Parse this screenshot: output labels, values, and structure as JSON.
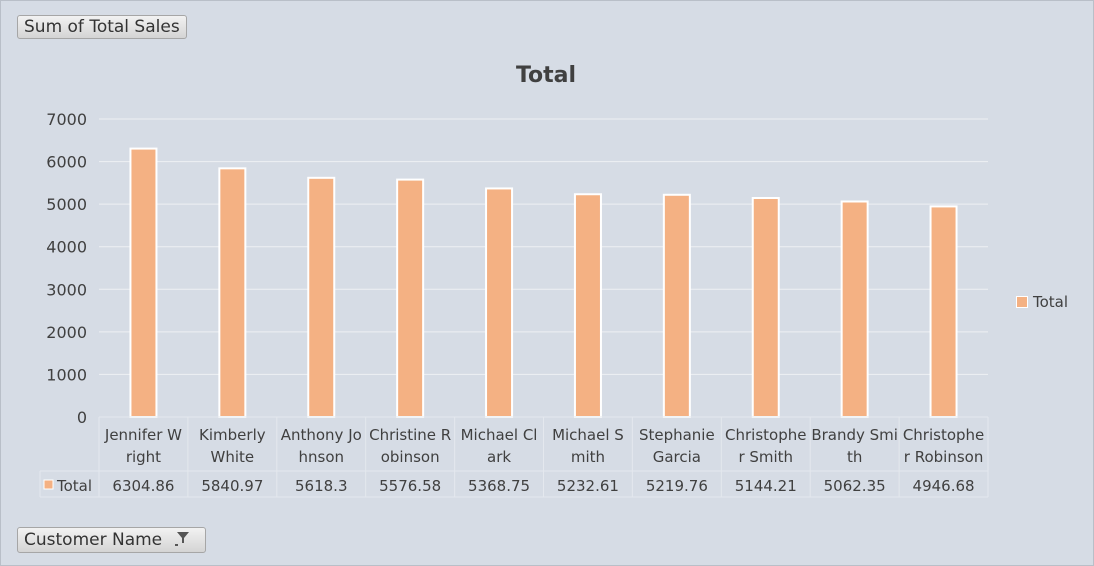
{
  "pivot": {
    "value_field_label": "Sum of Total Sales",
    "row_field_label": "Customer Name"
  },
  "legend": {
    "label": "Total",
    "color": "#f4b183"
  },
  "table": {
    "row_label": "Total"
  },
  "chart_data": {
    "type": "bar",
    "title": "Total",
    "xlabel": "",
    "ylabel": "",
    "ylim": [
      0,
      7000
    ],
    "yticks": [
      0,
      1000,
      2000,
      3000,
      4000,
      5000,
      6000,
      7000
    ],
    "grid": true,
    "legend_position": "right",
    "bar_color": "#f4b183",
    "categories": [
      "Jennifer Wright",
      "Kimberly White",
      "Anthony Johnson",
      "Christine Robinson",
      "Michael Clark",
      "Michael Smith",
      "Stephanie Garcia",
      "Christopher Smith",
      "Brandy Smith",
      "Christopher Robinson"
    ],
    "category_label_lines": [
      [
        "Jennifer W",
        "right"
      ],
      [
        "Kimberly",
        "White"
      ],
      [
        "Anthony Jo",
        "hnson"
      ],
      [
        "Christine R",
        "obinson"
      ],
      [
        "Michael Cl",
        "ark"
      ],
      [
        "Michael S",
        "mith"
      ],
      [
        "Stephanie",
        "Garcia"
      ],
      [
        "Christophe",
        "r Smith"
      ],
      [
        "Brandy Smi",
        "th"
      ],
      [
        "Christophe",
        "r Robinson"
      ]
    ],
    "series": [
      {
        "name": "Total",
        "values": [
          6304.86,
          5840.97,
          5618.3,
          5576.58,
          5368.75,
          5232.61,
          5219.76,
          5144.21,
          5062.35,
          4946.68
        ],
        "value_labels": [
          "6304.86",
          "5840.97",
          "5618.3",
          "5576.58",
          "5368.75",
          "5232.61",
          "5219.76",
          "5144.21",
          "5062.35",
          "4946.68"
        ]
      }
    ]
  }
}
